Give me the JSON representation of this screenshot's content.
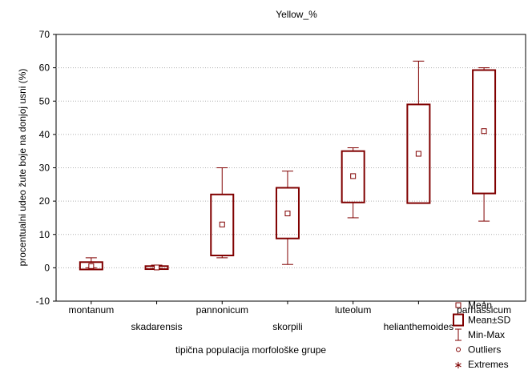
{
  "chart_data": {
    "type": "box",
    "title": "Yellow_%",
    "xlabel": "tipična populacija morfološke grupe",
    "ylabel": "procentualni udeo žute boje na donjoj usni (%)",
    "ylim": [
      -10,
      70
    ],
    "yticks": [
      -10,
      0,
      10,
      20,
      30,
      40,
      50,
      60,
      70
    ],
    "grid": "horizontal",
    "legend_position": "bottom-right",
    "color": "#800000",
    "categories": [
      "montanum",
      "skadarensis",
      "pannonicum",
      "skorpili",
      "luteolum",
      "helianthemoides",
      "parnassicum"
    ],
    "series": [
      {
        "category": "montanum",
        "mean": 0.5,
        "sd_low": -0.5,
        "sd_high": 1.7,
        "min": 0,
        "max": 3
      },
      {
        "category": "skadarensis",
        "mean": 0.1,
        "sd_low": -0.4,
        "sd_high": 0.5,
        "min": -0.2,
        "max": 0.8
      },
      {
        "category": "pannonicum",
        "mean": 13,
        "sd_low": 3.7,
        "sd_high": 22,
        "min": 3,
        "max": 30
      },
      {
        "category": "skorpili",
        "mean": 16.3,
        "sd_low": 8.8,
        "sd_high": 24,
        "min": 1,
        "max": 29
      },
      {
        "category": "luteolum",
        "mean": 27.5,
        "sd_low": 19.6,
        "sd_high": 35,
        "min": 15,
        "max": 36
      },
      {
        "category": "helianthemoides",
        "mean": 34.2,
        "sd_low": 19.4,
        "sd_high": 49,
        "min": 19.4,
        "max": 62
      },
      {
        "category": "parnassicum",
        "mean": 41,
        "sd_low": 22.3,
        "sd_high": 59.3,
        "min": 14,
        "max": 60
      }
    ],
    "legend": [
      "Mean",
      "Mean±SD",
      "Min-Max",
      "Outliers",
      "Extremes"
    ]
  }
}
